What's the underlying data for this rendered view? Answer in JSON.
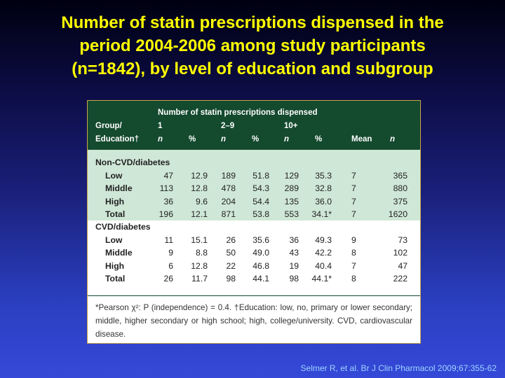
{
  "title": {
    "line1": "Number of statin prescriptions dispensed in the",
    "line2": "period 2004-2006 among study participants",
    "line3": "(n=1842), by level of education and subgroup"
  },
  "table": {
    "header": {
      "span_title": "Number of statin prescriptions dispensed",
      "group_label": "Group/",
      "education_label": "Education†",
      "bin1": "1",
      "bin2": "2–9",
      "bin3": "10+",
      "n": "n",
      "pct": "%",
      "mean": "Mean"
    },
    "sections": [
      {
        "name": "Non-CVD/diabetes",
        "rows": [
          {
            "label": "Low",
            "c": [
              "47",
              "12.9",
              "189",
              "51.8",
              "129",
              "35.3",
              "7",
              "365"
            ]
          },
          {
            "label": "Middle",
            "c": [
              "113",
              "12.8",
              "478",
              "54.3",
              "289",
              "32.8",
              "7",
              "880"
            ]
          },
          {
            "label": "High",
            "c": [
              "36",
              "9.6",
              "204",
              "54.4",
              "135",
              "36.0",
              "7",
              "375"
            ]
          },
          {
            "label": "Total",
            "c": [
              "196",
              "12.1",
              "871",
              "53.8",
              "553",
              "34.1*",
              "7",
              "1620"
            ]
          }
        ]
      },
      {
        "name": "CVD/diabetes",
        "rows": [
          {
            "label": "Low",
            "c": [
              "11",
              "15.1",
              "26",
              "35.6",
              "36",
              "49.3",
              "9",
              "73"
            ]
          },
          {
            "label": "Middle",
            "c": [
              "9",
              "8.8",
              "50",
              "49.0",
              "43",
              "42.2",
              "8",
              "102"
            ]
          },
          {
            "label": "High",
            "c": [
              "6",
              "12.8",
              "22",
              "46.8",
              "19",
              "40.4",
              "7",
              "47"
            ]
          },
          {
            "label": "Total",
            "c": [
              "26",
              "11.7",
              "98",
              "44.1",
              "98",
              "44.1*",
              "8",
              "222"
            ]
          }
        ]
      }
    ],
    "footnote": "*Pearson χ²: P (independence) = 0.4. †Education: low, no, primary or lower secondary; middle, higher secondary or high school; high, college/university. CVD, cardiovascular disease."
  },
  "citation": "Selmer R, et al. Br J Clin Pharmacol 2009;67:355-62",
  "colors": {
    "title": "#ffff00",
    "header_bg": "#144a2e",
    "band_bg": "#cfe7d6",
    "citation": "#9fd4ff"
  }
}
